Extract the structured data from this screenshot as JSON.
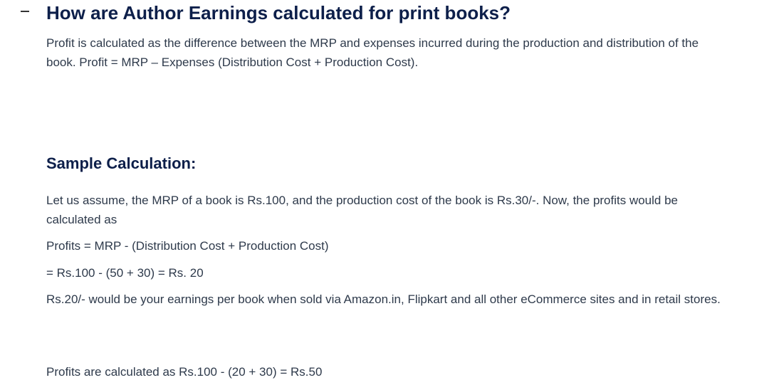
{
  "heading": "How are Author Earnings calculated for print books?",
  "intro": [
    "Profit is calculated as the difference between the MRP and expenses incurred during the production and distribution of the",
    "book. Profit = MRP – Expenses (Distribution Cost + Production Cost)."
  ],
  "sample_heading": "Sample Calculation:",
  "assumption": [
    "Let us assume, the MRP of a book is Rs.100, and the production cost of the book is Rs.30/-. Now, the profits would be",
    "calculated as"
  ],
  "formula": "Profits = MRP - (Distribution Cost + Production Cost)",
  "calc": "= Rs.100 - (50 + 30) = Rs. 20",
  "earnings": "Rs.20/- would be your earnings per book when sold via Amazon.in, Flipkart and all other eCommerce sites and in retail stores.",
  "second_calc": "Profits are calculated as Rs.100 - (20 + 30) = Rs.50"
}
